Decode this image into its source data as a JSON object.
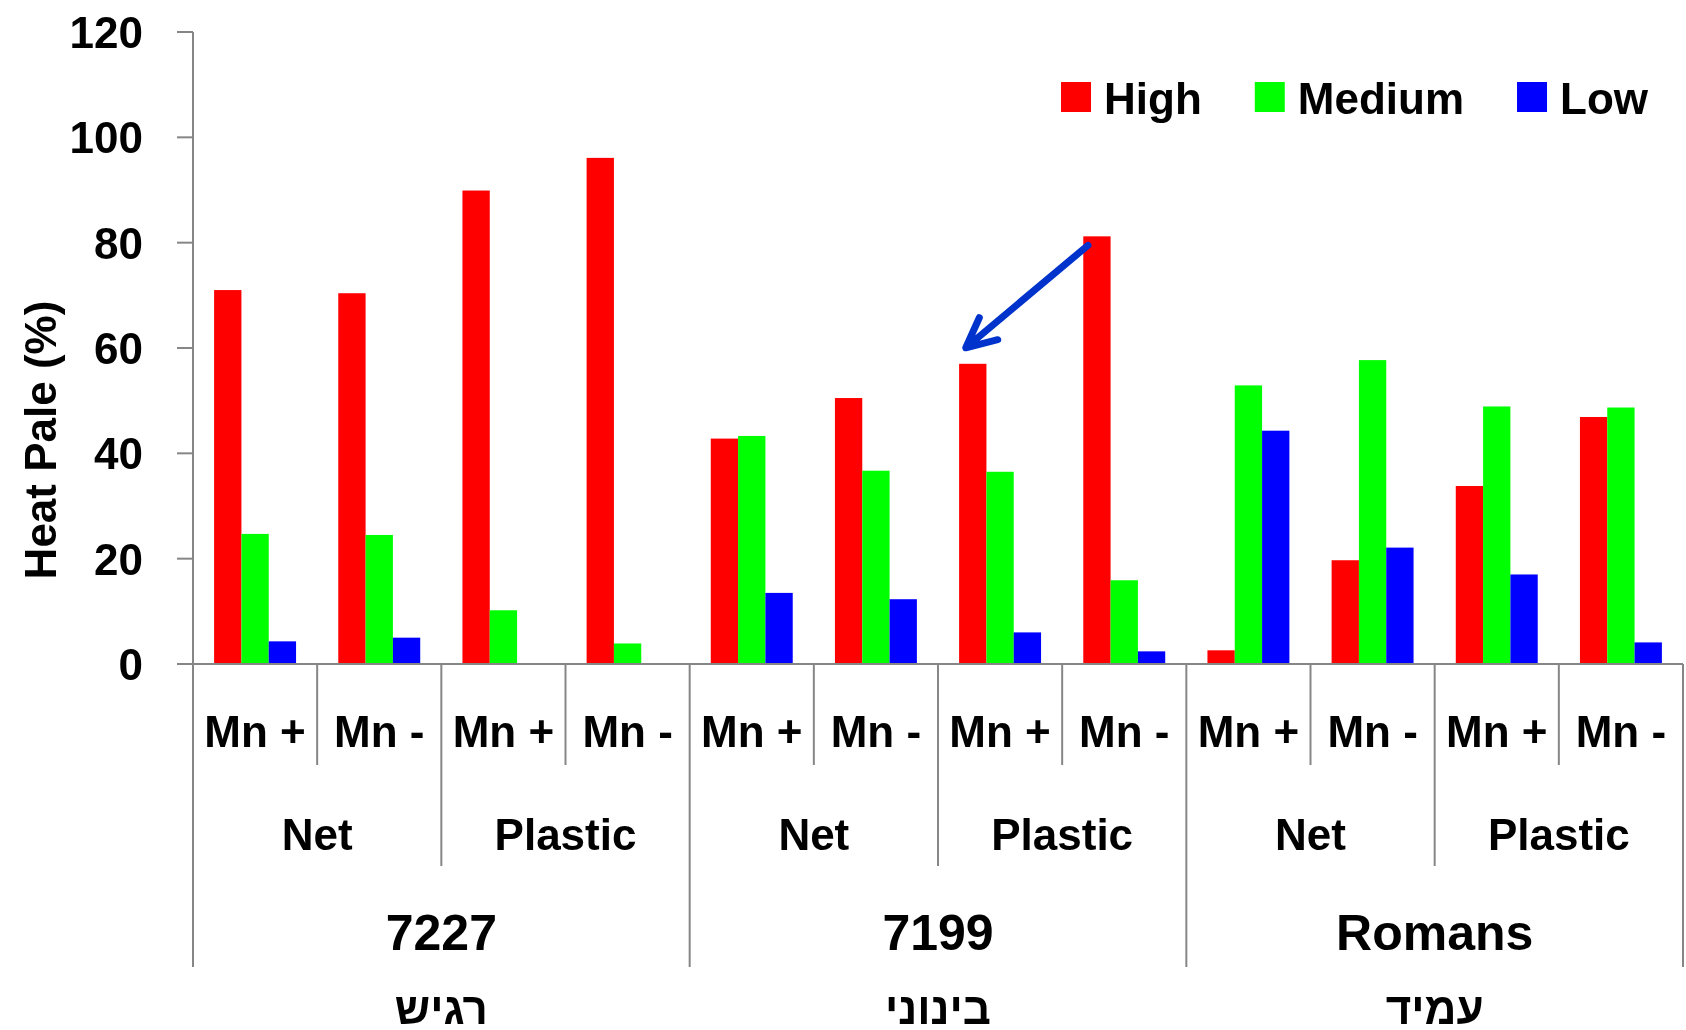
{
  "chart_data": {
    "type": "bar",
    "ylabel": "Heat Pale (%)",
    "categories": [
      "Mn +",
      "Mn -",
      "Mn +",
      "Mn -",
      "Mn +",
      "Mn -",
      "Mn +",
      "Mn -",
      "Mn +",
      "Mn -",
      "Mn +",
      "Mn -"
    ],
    "series": [
      {
        "name": "High",
        "color": "#ff0000",
        "values": [
          71.0,
          70.4,
          89.9,
          96.1,
          42.8,
          50.5,
          57.0,
          81.2,
          2.6,
          19.7,
          33.8,
          46.9
        ]
      },
      {
        "name": "Medium",
        "color": "#00ff00",
        "values": [
          24.7,
          24.5,
          10.2,
          3.9,
          43.3,
          36.7,
          36.5,
          15.9,
          52.9,
          57.7,
          48.9,
          48.7
        ]
      },
      {
        "name": "Low",
        "color": "#0000ff",
        "values": [
          4.3,
          5.0,
          null,
          null,
          13.5,
          12.3,
          6.0,
          2.4,
          44.3,
          22.1,
          17.0,
          4.1
        ]
      }
    ],
    "ylim": [
      0,
      120
    ],
    "yticks": [
      0,
      20,
      40,
      60,
      80,
      100,
      120
    ],
    "legend": "top right",
    "annotations": [
      "Net",
      "Plastic",
      "Net",
      "Plastic",
      "Net",
      "Plastic",
      "7227",
      "7199",
      "Romans",
      "רגיש",
      "בינוני",
      "עמיד"
    ]
  }
}
